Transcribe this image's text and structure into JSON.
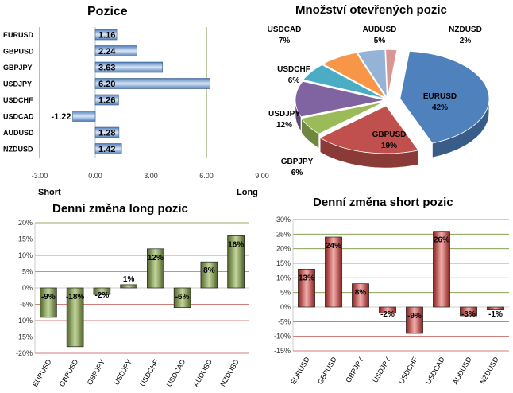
{
  "chart_data": [
    {
      "type": "bar",
      "orientation": "horizontal",
      "title": "Pozice",
      "categories": [
        "EURUSD",
        "GBPUSD",
        "GBPJPY",
        "USDJPY",
        "USDCHF",
        "USDCAD",
        "AUDUSD",
        "NZDUSD"
      ],
      "values": [
        1.16,
        2.24,
        3.63,
        6.2,
        1.26,
        -1.22,
        1.28,
        1.42
      ],
      "value_labels": [
        "1.16",
        "2.24",
        "3.63",
        "6.20",
        "1.26",
        "-1.22",
        "1.28",
        "1.42"
      ],
      "xlim": [
        -3,
        9
      ],
      "xticks": [
        -3,
        0,
        3,
        6,
        9
      ],
      "xtick_labels": [
        "-3.00",
        "0.00",
        "3.00",
        "6.00",
        "9.00"
      ],
      "left_label": "Short",
      "right_label": "Long",
      "bar_color": "#4f81bd"
    },
    {
      "type": "pie",
      "title": "Množství otevřených pozic",
      "slices": [
        {
          "label": "EURUSD",
          "percent_label": "42%",
          "value": 42,
          "color": "#4f81bd"
        },
        {
          "label": "GBPUSD",
          "percent_label": "19%",
          "value": 19,
          "color": "#c0504d"
        },
        {
          "label": "GBPJPY",
          "percent_label": "6%",
          "value": 6,
          "color": "#9bbb59"
        },
        {
          "label": "USDJPY",
          "percent_label": "12%",
          "value": 12,
          "color": "#8064a2"
        },
        {
          "label": "USDCHF",
          "percent_label": "6%",
          "value": 6,
          "color": "#4bacc6"
        },
        {
          "label": "USDCAD",
          "percent_label": "7%",
          "value": 7,
          "color": "#f79646"
        },
        {
          "label": "AUDUSD",
          "percent_label": "5%",
          "value": 5,
          "color": "#95b3d7"
        },
        {
          "label": "NZDUSD",
          "percent_label": "2%",
          "value": 2,
          "color": "#d99694"
        }
      ]
    },
    {
      "type": "bar",
      "title": "Denní změna long pozic",
      "categories": [
        "EURUSD",
        "GBPUSD",
        "GBPJPY",
        "USDJPY",
        "USDCHF",
        "USDCAD",
        "AUDUSD",
        "NZDUSD"
      ],
      "values": [
        -9,
        -18,
        -2,
        1,
        12,
        -6,
        8,
        16
      ],
      "value_labels": [
        "-9%",
        "-18%",
        "-2%",
        "1%",
        "12%",
        "-6%",
        "8%",
        "16%"
      ],
      "ylim": [
        -20,
        20
      ],
      "yticks": [
        -20,
        -15,
        -10,
        -5,
        0,
        5,
        10,
        15,
        20
      ],
      "ytick_labels": [
        "-20%",
        "-15%",
        "-10%",
        "-5%",
        "0%",
        "5%",
        "10%",
        "15%",
        "20%"
      ],
      "bar_color": "#77933c",
      "grid_color": "#77933c"
    },
    {
      "type": "bar",
      "title": "Denní změna short pozic",
      "categories": [
        "EURUSD",
        "GBPUSD",
        "GBPJPY",
        "USDJPY",
        "USDCHF",
        "USDCAD",
        "AUDUSD",
        "NZDUSD"
      ],
      "values": [
        13,
        24,
        8,
        -2,
        -9,
        26,
        -3,
        -1
      ],
      "value_labels": [
        "13%",
        "24%",
        "8%",
        "-2%",
        "-9%",
        "26%",
        "-3%",
        "-1%"
      ],
      "ylim": [
        -15,
        30
      ],
      "yticks": [
        -15,
        -10,
        -5,
        0,
        5,
        10,
        15,
        20,
        25,
        30
      ],
      "ytick_labels": [
        "-15%",
        "-10%",
        "-5%",
        "0%",
        "5%",
        "10%",
        "15%",
        "20%",
        "25%",
        "30%"
      ],
      "bar_color": "#c0392b",
      "grid_color": "#c0504d"
    }
  ]
}
